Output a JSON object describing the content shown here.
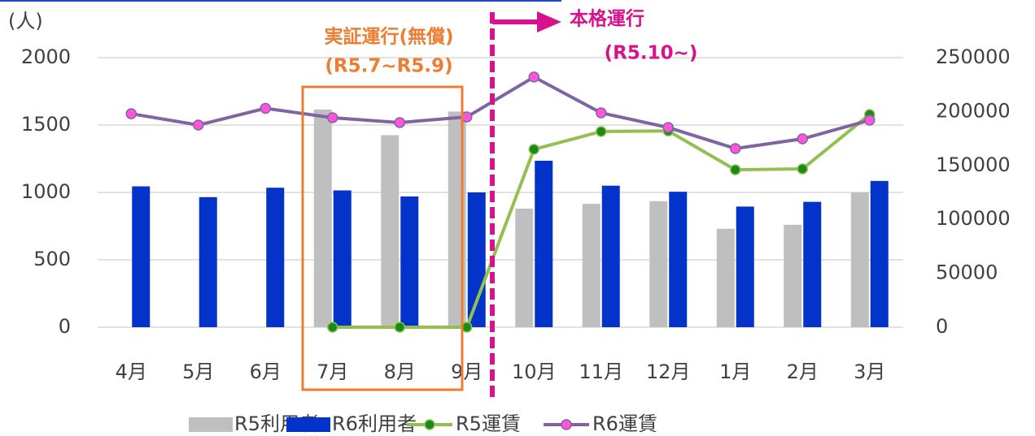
{
  "chart_data": {
    "type": "bar-line",
    "y_unit_label": "(人)",
    "categories": [
      "4月",
      "5月",
      "6月",
      "7月",
      "8月",
      "9月",
      "10月",
      "11月",
      "12月",
      "1月",
      "2月",
      "3月"
    ],
    "series": [
      {
        "name": "R5利用者",
        "type": "bar",
        "color": "#bfbfbf",
        "values": [
          null,
          null,
          null,
          1615,
          1425,
          1600,
          880,
          915,
          935,
          730,
          760,
          1000
        ]
      },
      {
        "name": "R6利用者",
        "type": "bar",
        "color": "#0433c9",
        "values": [
          1045,
          965,
          1035,
          1015,
          970,
          1000,
          1235,
          1050,
          1005,
          895,
          930,
          1085
        ]
      },
      {
        "name": "R5運賃",
        "type": "line",
        "axis": "y2",
        "color": "#92c050",
        "marker_color": "#1a8a1a",
        "values": [
          null,
          null,
          null,
          0,
          0,
          0,
          165000,
          181500,
          182000,
          146000,
          146800,
          197300
        ]
      },
      {
        "name": "R6運賃",
        "type": "line",
        "axis": "y2",
        "color": "#8064a2",
        "marker_color": "#ff55dd",
        "values": [
          198000,
          187500,
          203000,
          194300,
          189800,
          195000,
          232000,
          198800,
          185200,
          165700,
          174700,
          192000
        ]
      }
    ],
    "ylim": [
      0,
      2000
    ],
    "yticks": [
      0,
      500,
      1000,
      1500,
      2000
    ],
    "y2lim": [
      0,
      250000
    ],
    "y2ticks": [
      0,
      50000,
      100000,
      150000,
      200000,
      250000
    ],
    "grid": true,
    "legend": "bottom",
    "annotations": [
      {
        "lines": [
          "実証運行(無償)",
          "(R5.7~R5.9)"
        ],
        "color": "#ed7d31"
      },
      {
        "lines": [
          "本格運行",
          "(R5.10~)"
        ],
        "color": "#d6128c"
      }
    ]
  }
}
